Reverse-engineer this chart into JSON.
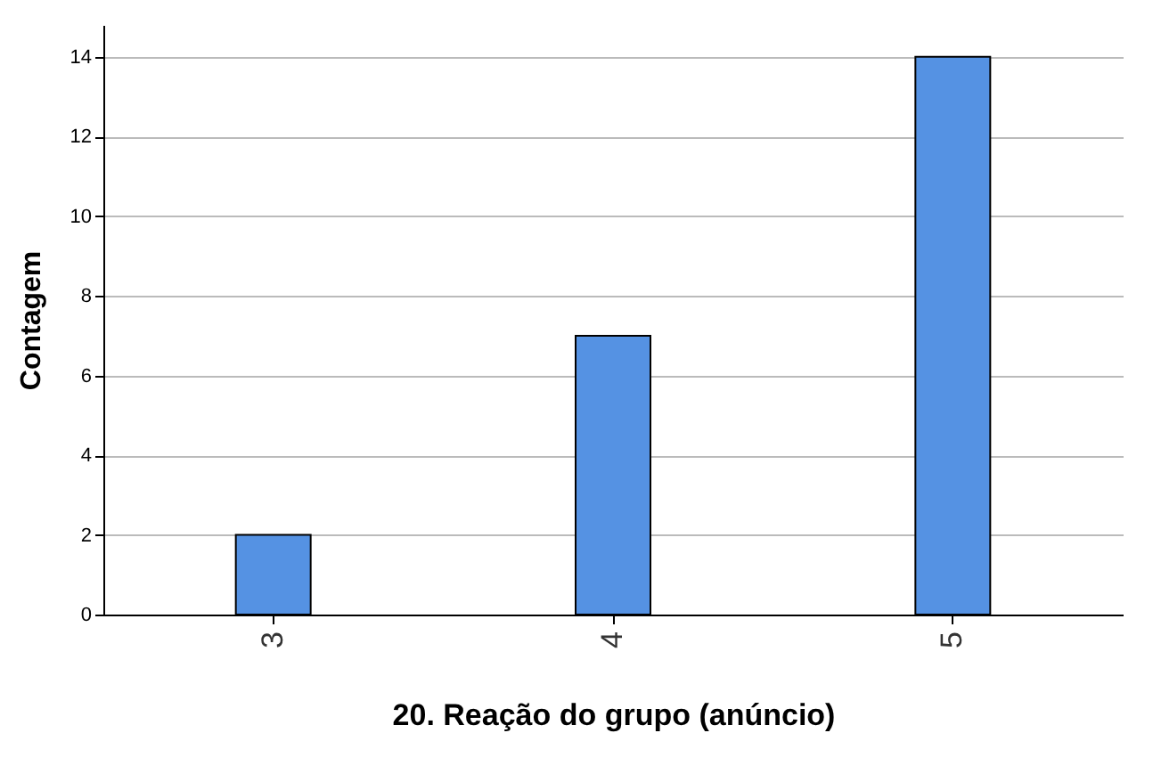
{
  "chart_data": {
    "type": "bar",
    "xlabel": "20. Reação do grupo (anúncio)",
    "ylabel": "Contagem",
    "categories": [
      "3",
      "4",
      "5"
    ],
    "values": [
      2,
      7,
      14
    ],
    "color": "#5592e3",
    "ylim": [
      0,
      14.8
    ],
    "yticks": [
      0,
      2,
      4,
      6,
      8,
      10,
      12,
      14
    ],
    "grid": "y"
  }
}
